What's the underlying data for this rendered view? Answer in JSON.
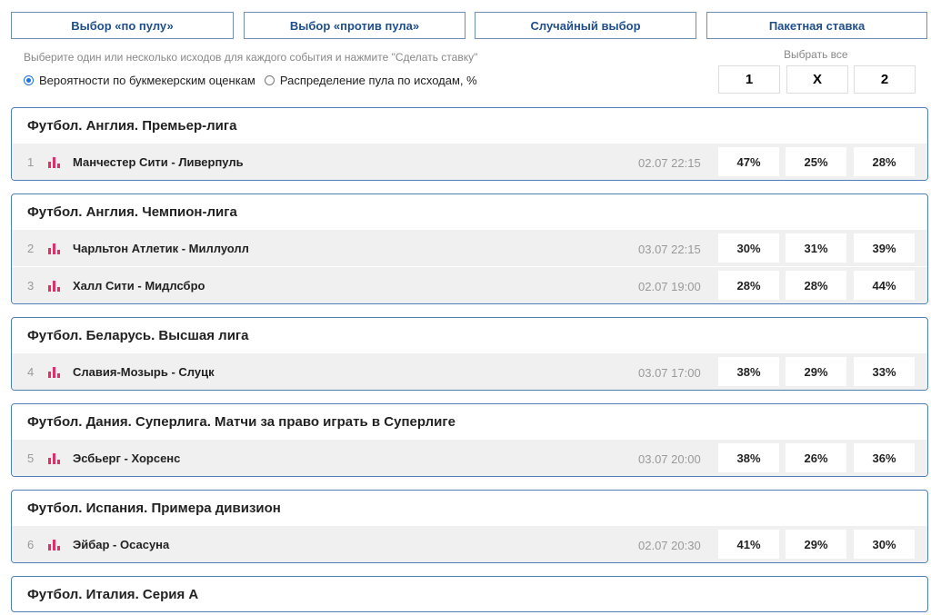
{
  "toolbar": {
    "buttons": [
      "Выбор «по пулу»",
      "Выбор «против пула»",
      "Случайный выбор",
      "Пакетная ставка"
    ]
  },
  "controls": {
    "hint": "Выберите один или несколько исходов для каждого события и нажмите \"Сделать ставку\"",
    "select_all": "Выбрать все",
    "options": [
      "Вероятности по букмекерским оценкам",
      "Распределение пула по исходам, %"
    ],
    "outcomes": [
      "1",
      "X",
      "2"
    ]
  },
  "groups": [
    {
      "title": "Футбол. Англия. Премьер-лига",
      "matches": [
        {
          "number": "1",
          "name": "Манчестер Сити - Ливерпуль",
          "date": "02.07 22:15",
          "odds": [
            "47%",
            "25%",
            "28%"
          ]
        }
      ]
    },
    {
      "title": "Футбол. Англия. Чемпион-лига",
      "matches": [
        {
          "number": "2",
          "name": "Чарльтон Атлетик - Миллуолл",
          "date": "03.07 22:15",
          "odds": [
            "30%",
            "31%",
            "39%"
          ]
        },
        {
          "number": "3",
          "name": "Халл Сити - Мидлсбро",
          "date": "02.07 19:00",
          "odds": [
            "28%",
            "28%",
            "44%"
          ]
        }
      ]
    },
    {
      "title": "Футбол. Беларусь. Высшая лига",
      "matches": [
        {
          "number": "4",
          "name": "Славия-Мозырь - Слуцк",
          "date": "03.07 17:00",
          "odds": [
            "38%",
            "29%",
            "33%"
          ]
        }
      ]
    },
    {
      "title": "Футбол. Дания. Суперлига. Матчи за право играть в Суперлиге",
      "matches": [
        {
          "number": "5",
          "name": "Эсбьерг - Хорсенс",
          "date": "03.07 20:00",
          "odds": [
            "38%",
            "26%",
            "36%"
          ]
        }
      ]
    },
    {
      "title": "Футбол. Испания. Примера дивизион",
      "matches": [
        {
          "number": "6",
          "name": "Эйбар - Осасуна",
          "date": "02.07 20:30",
          "odds": [
            "41%",
            "29%",
            "30%"
          ]
        }
      ]
    },
    {
      "title": "Футбол. Италия. Серия А",
      "matches": []
    }
  ]
}
